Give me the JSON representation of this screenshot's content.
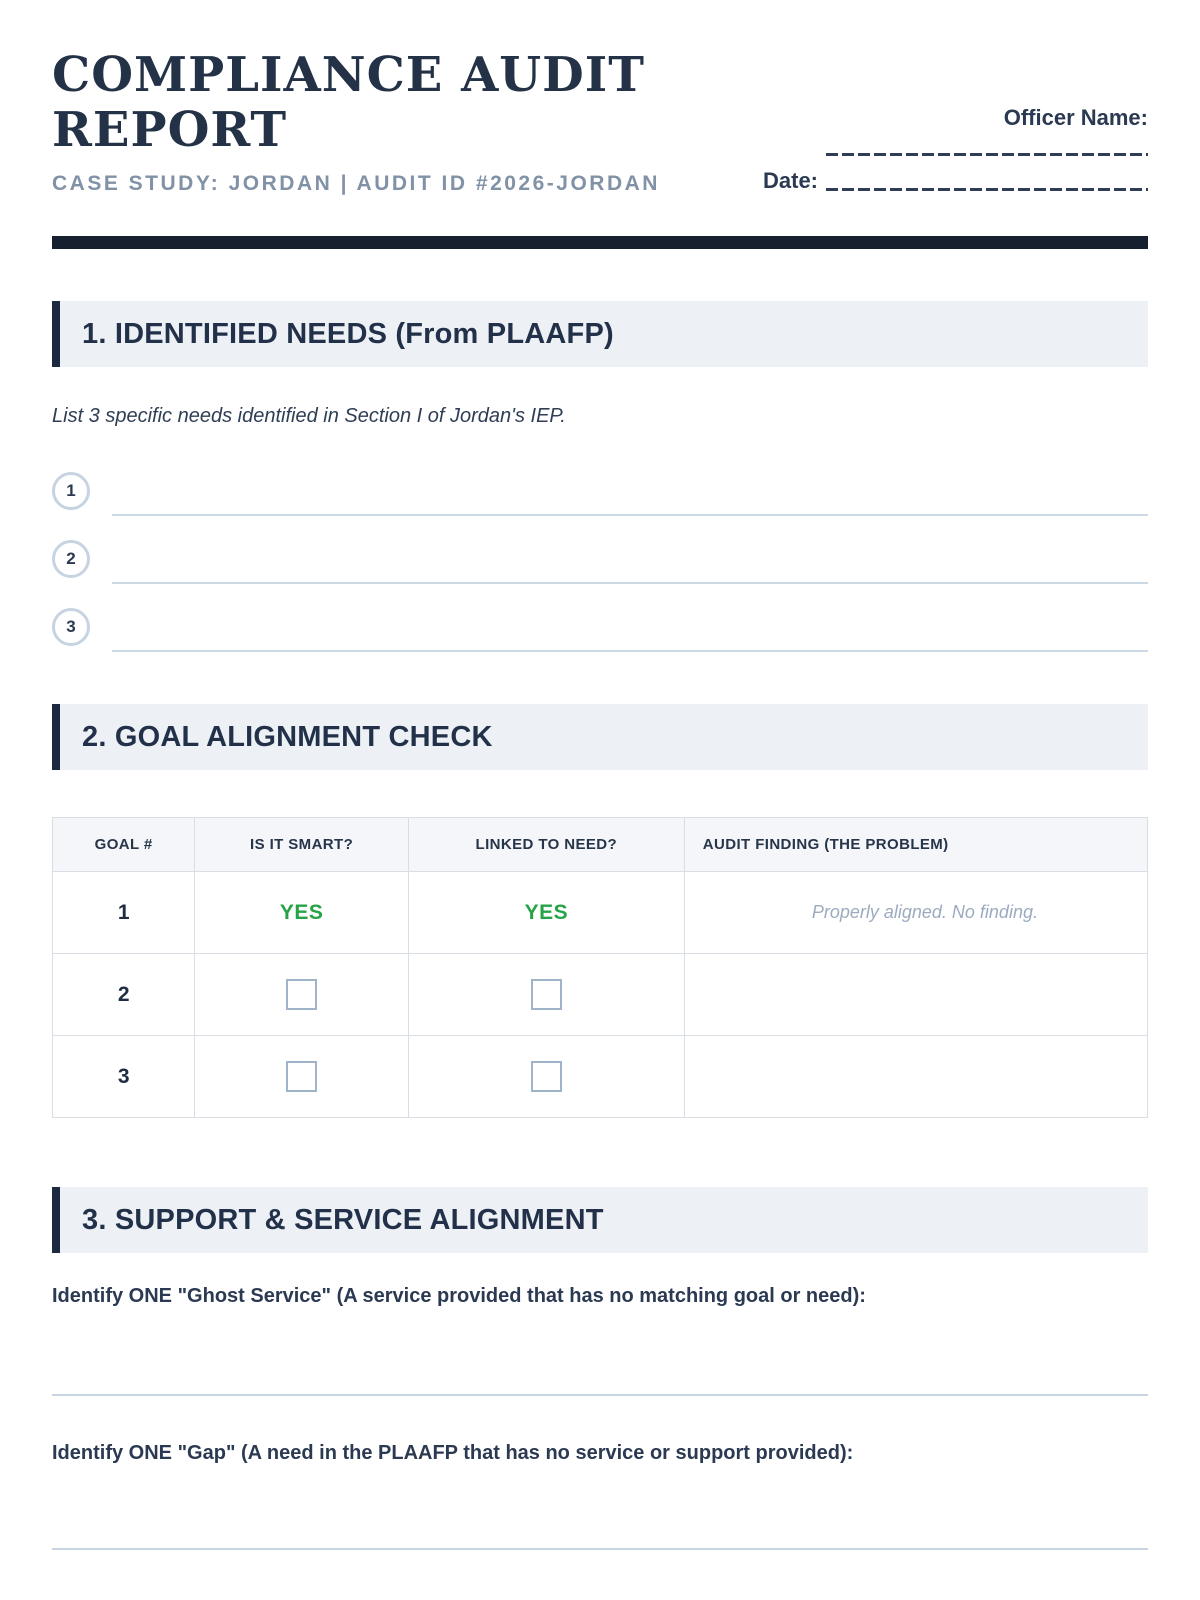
{
  "header": {
    "title": "COMPLIANCE AUDIT REPORT",
    "subtitle": "CASE STUDY: JORDAN | AUDIT ID #2026-JORDAN",
    "officer_name_label": "Officer Name:",
    "date_label": "Date:"
  },
  "section1": {
    "heading": "1. IDENTIFIED NEEDS (From PLAAFP)",
    "instruction": "List 3 specific needs identified in Section I of Jordan's IEP.",
    "items": [
      {
        "number": "1"
      },
      {
        "number": "2"
      },
      {
        "number": "3"
      }
    ]
  },
  "section2": {
    "heading": "2. GOAL ALIGNMENT CHECK",
    "table": {
      "headers": [
        "GOAL #",
        "IS IT SMART?",
        "LINKED TO NEED?",
        "AUDIT FINDING (THE PROBLEM)"
      ],
      "rows": [
        {
          "goal": "1",
          "smart": "YES",
          "linked": "YES",
          "finding": "Properly aligned. No finding."
        },
        {
          "goal": "2",
          "smart": "",
          "linked": "",
          "finding": ""
        },
        {
          "goal": "3",
          "smart": "",
          "linked": "",
          "finding": ""
        }
      ]
    }
  },
  "section3": {
    "heading": "3. SUPPORT & SERVICE ALIGNMENT",
    "prompt_ghost": "Identify ONE \"Ghost Service\" (A service provided that has no matching goal or need):",
    "prompt_gap": "Identify ONE \"Gap\" (A need in the PLAAFP that has no service or support provided):"
  },
  "colors": {
    "title_navy": "#243247",
    "bar_navy": "#16202f",
    "band_bg": "#edf1f6",
    "band_border": "#1d2940",
    "subtitle_gray": "#8191a6",
    "yes_green": "#27a347",
    "finding_gray": "#9cabbf",
    "line_blue": "#ccd8e4"
  }
}
